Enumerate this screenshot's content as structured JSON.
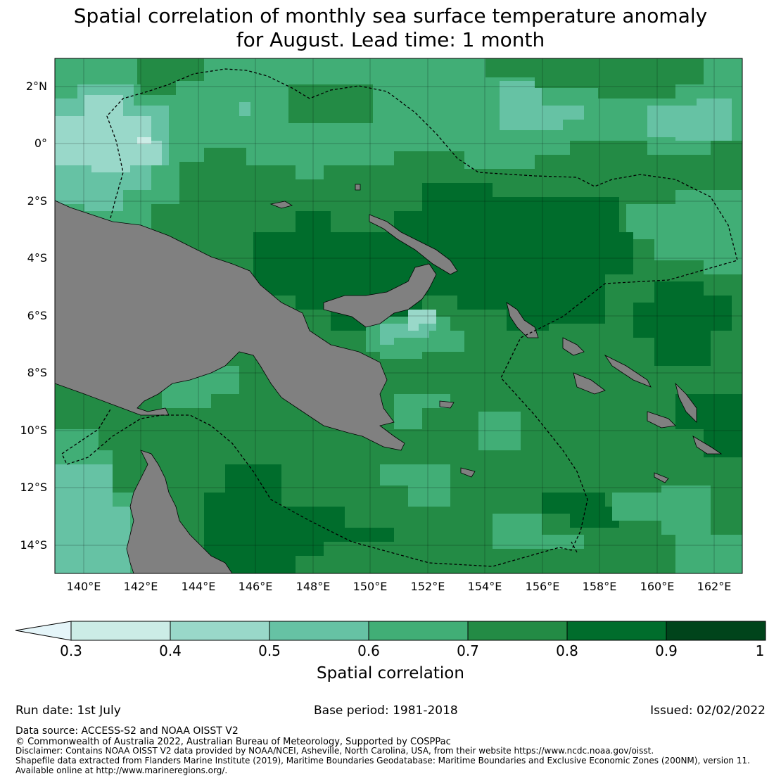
{
  "title_line1": "Spatial correlation of monthly sea surface temperature anomaly",
  "title_line2": "for August. Lead time: 1 month",
  "lat_labels": [
    "2°N",
    "0°",
    "2°S",
    "4°S",
    "6°S",
    "8°S",
    "10°S",
    "12°S",
    "14°S"
  ],
  "lon_labels": [
    "140°E",
    "142°E",
    "144°E",
    "146°E",
    "148°E",
    "150°E",
    "152°E",
    "154°E",
    "156°E",
    "158°E",
    "160°E",
    "162°E"
  ],
  "map_extent": {
    "lon": [
      139,
      163
    ],
    "lat": [
      -15,
      3
    ]
  },
  "colorbar": {
    "ticks": [
      "0.3",
      "0.4",
      "0.5",
      "0.6",
      "0.7",
      "0.8",
      "0.9",
      "1"
    ],
    "colors": [
      "#e5f5f9",
      "#ccece6",
      "#99d8c9",
      "#66c2a4",
      "#41ae76",
      "#238b45",
      "#006d2c",
      "#00441b"
    ],
    "label": "Spatial correlation",
    "extend": "min"
  },
  "land_color": "#808080",
  "footer": {
    "run_date": "Run date: 1st July",
    "base_period": "Base period: 1981-2018",
    "issued": "Issued: 02/02/2022",
    "data_source": "Data source: ACCESS-S2 and NOAA OISST V2",
    "copyright": "© Commonwealth of Australia 2022, Australian Bureau of Meteorology, Supported by COSPPac",
    "disclaimer": "Disclaimer: Contains NOAA OISST V2 data provided by NOAA/NCEI, Asheville, North Carolina, USA, from their website https://www.ncdc.noaa.gov/oisst.",
    "shapefile": "Shapefile data extracted from Flanders Marine Institute (2019), Maritime Boundaries Geodatabase: Maritime Boundaries and Exclusive Economic Zones (200NM), version 11.",
    "available": "Available online at http://www.marineregions.org/."
  }
}
